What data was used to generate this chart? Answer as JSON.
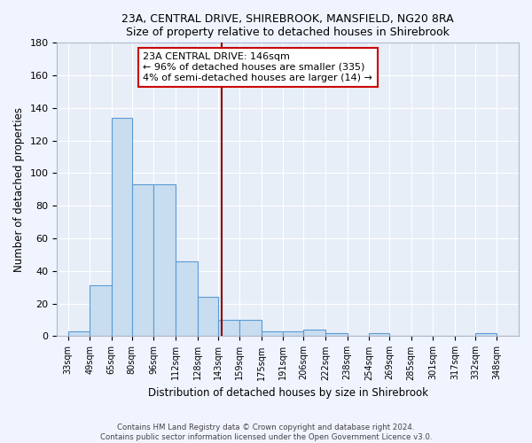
{
  "title1": "23A, CENTRAL DRIVE, SHIREBROOK, MANSFIELD, NG20 8RA",
  "title2": "Size of property relative to detached houses in Shirebrook",
  "xlabel": "Distribution of detached houses by size in Shirebrook",
  "ylabel": "Number of detached properties",
  "bins": [
    33,
    49,
    65,
    80,
    96,
    112,
    128,
    143,
    159,
    175,
    191,
    206,
    222,
    238,
    254,
    269,
    285,
    301,
    317,
    332,
    348
  ],
  "heights": [
    3,
    31,
    134,
    93,
    93,
    46,
    24,
    10,
    10,
    3,
    3,
    4,
    2,
    0,
    2,
    0,
    0,
    0,
    0,
    2,
    0
  ],
  "bar_color": "#c8ddf0",
  "bar_edge_color": "#5b9bd5",
  "background_color": "#e8eef8",
  "grid_color": "#ffffff",
  "vline_x": 146,
  "vline_color": "#8b0000",
  "annotation_text": "23A CENTRAL DRIVE: 146sqm\n← 96% of detached houses are smaller (335)\n4% of semi-detached houses are larger (14) →",
  "annotation_box_color": "#ffffff",
  "annotation_box_edge": "#cc0000",
  "ylim": [
    0,
    180
  ],
  "yticks": [
    0,
    20,
    40,
    60,
    80,
    100,
    120,
    140,
    160,
    180
  ],
  "footnote": "Contains HM Land Registry data © Crown copyright and database right 2024.\nContains public sector information licensed under the Open Government Licence v3.0."
}
